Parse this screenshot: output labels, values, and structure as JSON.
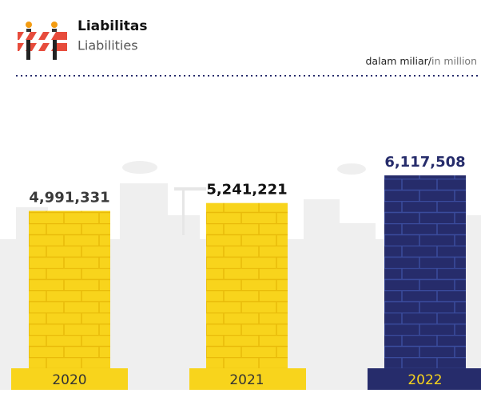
{
  "chart_data": {
    "type": "bar",
    "title": "Liabilitas",
    "subtitle": "Liabilities",
    "unit_note_id": "dalam miliar/",
    "unit_note_en": "in million",
    "categories": [
      "2020",
      "2021",
      "2022"
    ],
    "values": [
      4991331,
      5241221,
      6117508
    ],
    "value_labels": [
      "4,991,331",
      "5,241,221",
      "6,117,508"
    ],
    "colors": [
      "#f8d41c",
      "#f8d41c",
      "#262c6b"
    ],
    "brick_colors": [
      "#e9bb0a",
      "#e9bb0a",
      "#3a4b9c"
    ],
    "value_label_colors": [
      "#3a3a3a",
      "#111111",
      "#262c6b"
    ],
    "category_text_colors": [
      "#333333",
      "#333333",
      "#f8d41c"
    ]
  }
}
